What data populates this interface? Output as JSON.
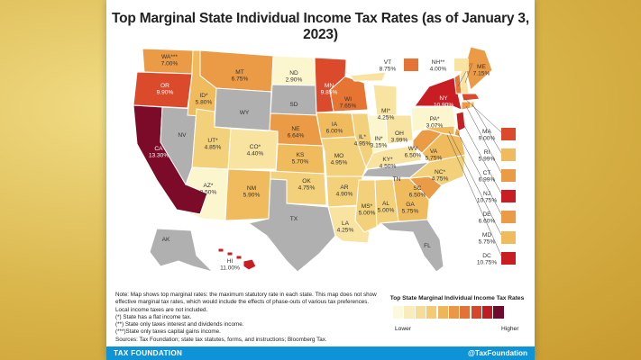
{
  "title": "Top Marginal State Individual Income Tax Rates (as of January 3, 2023)",
  "colors": {
    "c0": "#b0b0b0",
    "c1": "#fcf6cf",
    "c2": "#f8e4a0",
    "c3": "#f3d17b",
    "c4": "#f0bb5d",
    "c5": "#eb9b45",
    "c6": "#e67534",
    "c7": "#db4a2a",
    "c8": "#c81e23",
    "c9": "#7b0b28"
  },
  "states": {
    "WA": {
      "name": "WA***",
      "rate": "7.00%",
      "value": 7.0
    },
    "OR": {
      "name": "OR",
      "rate": "9.90%",
      "value": 9.9
    },
    "CA": {
      "name": "CA",
      "rate": "13.30%",
      "value": 13.3
    },
    "NV": {
      "name": "NV",
      "rate": "",
      "value": 0
    },
    "ID": {
      "name": "ID*",
      "rate": "5.80%",
      "value": 5.8
    },
    "MT": {
      "name": "MT",
      "rate": "6.75%",
      "value": 6.75
    },
    "WY": {
      "name": "WY",
      "rate": "",
      "value": 0
    },
    "UT": {
      "name": "UT*",
      "rate": "4.85%",
      "value": 4.85
    },
    "AZ": {
      "name": "AZ*",
      "rate": "2.50%",
      "value": 2.5
    },
    "CO": {
      "name": "CO*",
      "rate": "4.40%",
      "value": 4.4
    },
    "NM": {
      "name": "NM",
      "rate": "5.90%",
      "value": 5.9
    },
    "ND": {
      "name": "ND",
      "rate": "2.90%",
      "value": 2.9
    },
    "SD": {
      "name": "SD",
      "rate": "",
      "value": 0
    },
    "NE": {
      "name": "NE",
      "rate": "6.64%",
      "value": 6.64
    },
    "KS": {
      "name": "KS",
      "rate": "5.70%",
      "value": 5.7
    },
    "OK": {
      "name": "OK",
      "rate": "4.75%",
      "value": 4.75
    },
    "TX": {
      "name": "TX",
      "rate": "",
      "value": 0
    },
    "MN": {
      "name": "MN",
      "rate": "9.85%",
      "value": 9.85
    },
    "IA": {
      "name": "IA",
      "rate": "6.00%",
      "value": 6.0
    },
    "MO": {
      "name": "MO",
      "rate": "4.95%",
      "value": 4.95
    },
    "AR": {
      "name": "AR",
      "rate": "4.90%",
      "value": 4.9
    },
    "LA": {
      "name": "LA",
      "rate": "4.25%",
      "value": 4.25
    },
    "WI": {
      "name": "WI",
      "rate": "7.65%",
      "value": 7.65
    },
    "IL": {
      "name": "IL*",
      "rate": "4.95%",
      "value": 4.95
    },
    "MS": {
      "name": "MS*",
      "rate": "5.00%",
      "value": 5.0
    },
    "MI": {
      "name": "MI*",
      "rate": "4.25%",
      "value": 4.25
    },
    "IN": {
      "name": "IN*",
      "rate": "3.15%",
      "value": 3.15
    },
    "KY": {
      "name": "KY*",
      "rate": "4.50%",
      "value": 4.5
    },
    "TN": {
      "name": "TN",
      "rate": "",
      "value": 0
    },
    "AL": {
      "name": "AL",
      "rate": "5.00%",
      "value": 5.0
    },
    "OH": {
      "name": "OH",
      "rate": "3.99%",
      "value": 3.99
    },
    "WV": {
      "name": "WV",
      "rate": "6.50%",
      "value": 6.5
    },
    "VA": {
      "name": "VA",
      "rate": "5.75%",
      "value": 5.75
    },
    "NC": {
      "name": "NC*",
      "rate": "4.75%",
      "value": 4.75
    },
    "SC": {
      "name": "SC",
      "rate": "6.50%",
      "value": 6.5
    },
    "GA": {
      "name": "GA",
      "rate": "5.75%",
      "value": 5.75
    },
    "FL": {
      "name": "FL",
      "rate": "",
      "value": 0
    },
    "PA": {
      "name": "PA*",
      "rate": "3.07%",
      "value": 3.07
    },
    "NY": {
      "name": "NY",
      "rate": "10.90%",
      "value": 10.9
    },
    "ME": {
      "name": "ME",
      "rate": "7.15%",
      "value": 7.15
    },
    "AK": {
      "name": "AK",
      "rate": "",
      "value": 0
    },
    "HI": {
      "name": "HI",
      "rate": "11.00%",
      "value": 11.0
    },
    "VT": {
      "name": "VT",
      "rate": "8.75%",
      "value": 8.75
    },
    "NH": {
      "name": "NH**",
      "rate": "4.00%",
      "value": 4.0
    },
    "MA": {
      "name": "MA",
      "rate": "9.00%",
      "value": 9.0
    },
    "RI": {
      "name": "RI",
      "rate": "5.99%",
      "value": 5.99
    },
    "CT": {
      "name": "CT",
      "rate": "6.99%",
      "value": 6.99
    },
    "NJ": {
      "name": "NJ",
      "rate": "10.75%",
      "value": 10.75
    },
    "DE": {
      "name": "DE",
      "rate": "6.60%",
      "value": 6.6
    },
    "MD": {
      "name": "MD",
      "rate": "5.75%",
      "value": 5.75
    },
    "DC": {
      "name": "DC",
      "rate": "10.75%",
      "value": 10.75
    }
  },
  "notes": [
    "Note: Map shows top marginal rates: the maximum statutory rate in each state. This map does not show effective marginal tax rates, which would include the effects of phase-outs of various tax preferences. Local income taxes are not included.",
    "(*) State has a flat income tax.",
    "(**) State only taxes interest and dividends income.",
    "(***)State only taxes capital gains income.",
    "Sources: Tax Foundation; state tax statutes, forms, and instructions; Bloomberg Tax."
  ],
  "legend": {
    "title": "Top State Marginal Individual Income Tax Rates",
    "low": "Lower",
    "high": "Higher",
    "steps": [
      "#fdf9e0",
      "#f9ecbb",
      "#f5dd96",
      "#f2cb73",
      "#efb55a",
      "#ea9747",
      "#e27236",
      "#d5462b",
      "#bd1c25",
      "#6e0a2a"
    ]
  },
  "footer": {
    "left": "TAX FOUNDATION",
    "right": "@TaxFoundation"
  }
}
